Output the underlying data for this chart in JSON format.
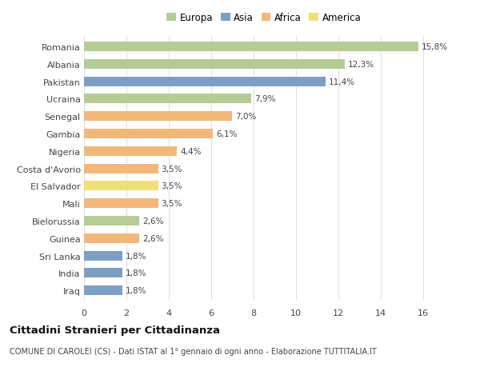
{
  "countries": [
    "Romania",
    "Albania",
    "Pakistan",
    "Ucraina",
    "Senegal",
    "Gambia",
    "Nigeria",
    "Costa d'Avorio",
    "El Salvador",
    "Mali",
    "Bielorussia",
    "Guinea",
    "Sri Lanka",
    "India",
    "Iraq"
  ],
  "values": [
    15.8,
    12.3,
    11.4,
    7.9,
    7.0,
    6.1,
    4.4,
    3.5,
    3.5,
    3.5,
    2.6,
    2.6,
    1.8,
    1.8,
    1.8
  ],
  "labels": [
    "15,8%",
    "12,3%",
    "11,4%",
    "7,9%",
    "7,0%",
    "6,1%",
    "4,4%",
    "3,5%",
    "3,5%",
    "3,5%",
    "2,6%",
    "2,6%",
    "1,8%",
    "1,8%",
    "1,8%"
  ],
  "continents": [
    "Europa",
    "Europa",
    "Asia",
    "Europa",
    "Africa",
    "Africa",
    "Africa",
    "Africa",
    "America",
    "Africa",
    "Europa",
    "Africa",
    "Asia",
    "Asia",
    "Asia"
  ],
  "colors": {
    "Europa": "#b5cc96",
    "Asia": "#7d9fc4",
    "Africa": "#f2b87a",
    "America": "#f0e07a"
  },
  "title": "Cittadini Stranieri per Cittadinanza",
  "subtitle": "COMUNE DI CAROLEI (CS) - Dati ISTAT al 1° gennaio di ogni anno - Elaborazione TUTTITALIA.IT",
  "xlim": [
    0,
    17
  ],
  "xticks": [
    0,
    2,
    4,
    6,
    8,
    10,
    12,
    14,
    16
  ],
  "background_color": "#ffffff",
  "grid_color": "#e0e0e0",
  "bar_height": 0.55
}
